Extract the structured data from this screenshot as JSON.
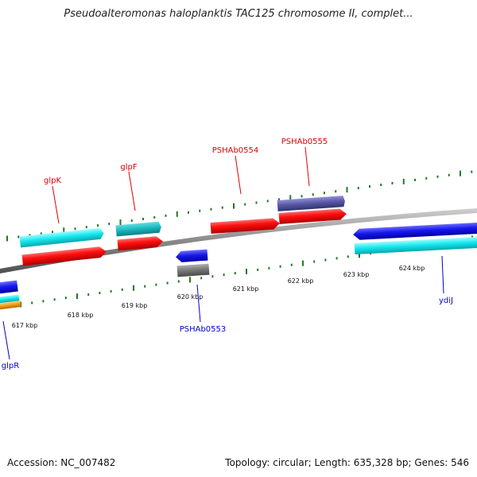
{
  "title": "Pseudoalteromonas haloplanktis TAC125 chromosome II, complet...",
  "footer": {
    "accession": "Accession: NC_007482",
    "summary": "Topology: circular; Length: 635,328 bp; Genes: 546"
  },
  "colors": {
    "forward_label": "#dd0000",
    "reverse_label": "#0000cc",
    "backbone": "#8a8a8a",
    "tick": "#1f7a1f"
  },
  "scale": {
    "labels": [
      "617 kbp",
      "618 kbp",
      "619 kbp",
      "620 kbp",
      "621 kbp",
      "622 kbp",
      "623 kbp",
      "624 kbp"
    ]
  },
  "gene_labels": [
    {
      "id": "glpK",
      "text": "glpK",
      "strand": "forward"
    },
    {
      "id": "glpF",
      "text": "glpF",
      "strand": "forward"
    },
    {
      "id": "PSHAb0554",
      "text": "PSHAb0554",
      "strand": "forward"
    },
    {
      "id": "PSHAb0555",
      "text": "PSHAb0555",
      "strand": "forward"
    },
    {
      "id": "PSHAb0553",
      "text": "PSHAb0553",
      "strand": "reverse"
    },
    {
      "id": "ydiJ",
      "text": "ydiJ",
      "strand": "reverse"
    },
    {
      "id": "glpR",
      "text": "glpR",
      "strand": "reverse"
    }
  ]
}
